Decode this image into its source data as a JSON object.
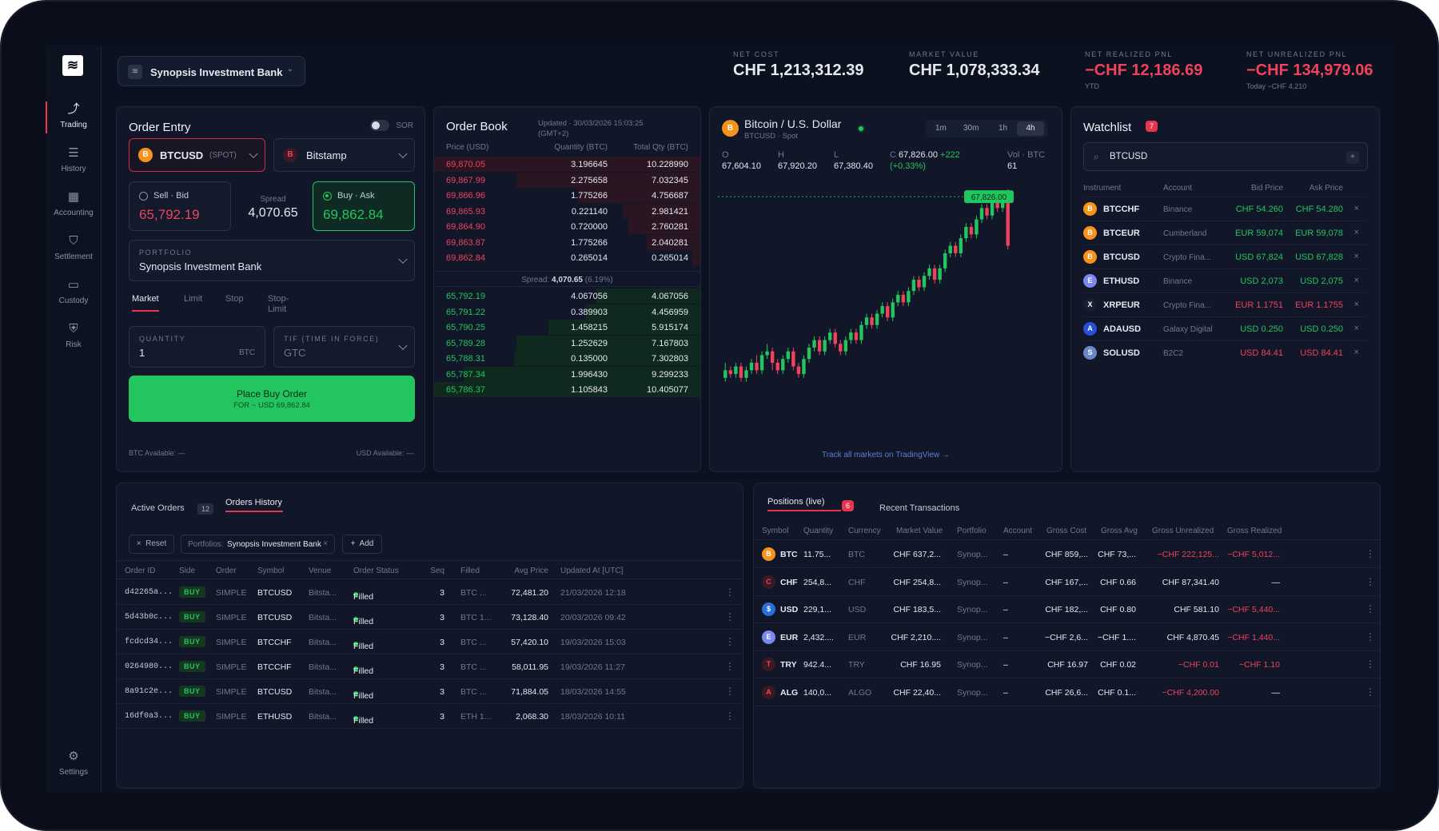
{
  "nav": {
    "items": [
      {
        "label": "Trading",
        "icon": "trend-icon"
      },
      {
        "label": "History",
        "icon": "list-icon"
      },
      {
        "label": "Accounting",
        "icon": "grid-icon"
      },
      {
        "label": "Settlement",
        "icon": "shield-icon"
      },
      {
        "label": "Custody",
        "icon": "wallet-icon"
      },
      {
        "label": "Risk",
        "icon": "shield-check-icon"
      }
    ],
    "settings": "Settings"
  },
  "header": {
    "entity": "Synopsis Investment Bank",
    "stats": [
      {
        "label": "NET COST",
        "value": "CHF 1,213,312.39",
        "sub": ""
      },
      {
        "label": "MARKET VALUE",
        "value": "CHF 1,078,333.34",
        "sub": ""
      },
      {
        "label": "NET REALIZED PNL",
        "value": "−CHF 12,186.69",
        "sub": "YTD"
      },
      {
        "label": "NET UNREALIZED PNL",
        "value": "−CHF 134,979.06",
        "sub": "Today −CHF 4,210"
      }
    ]
  },
  "order_entry": {
    "title": "Order Entry",
    "sor": "SOR",
    "symbol": "BTCUSD",
    "symbol_tag": "(SPOT)",
    "venue": "Bitstamp",
    "sell_label": "Sell · Bid",
    "sell_price": "65,792.19",
    "spread_label": "Spread",
    "spread": "4,070.65",
    "buy_label": "Buy · Ask",
    "buy_price": "69,862.84",
    "portfolio_label": "PORTFOLIO",
    "portfolio": "Synopsis Investment Bank",
    "tabs": [
      "Market",
      "Limit",
      "Stop",
      "Stop-Limit"
    ],
    "qty_label": "QUANTITY",
    "qty": "1",
    "qty_unit": "BTC",
    "tif_label": "TIF (TIME IN FORCE)",
    "tif": "GTC",
    "place_label": "Place Buy Order",
    "place_sub": "FOR ~ USD 69,862.84",
    "btc_avail": "BTC Available: —",
    "usd_avail": "USD Available: —"
  },
  "order_book": {
    "title": "Order Book",
    "updated": "Updated · 30/03/2026 15:03:25",
    "tz": "(GMT+2)",
    "cols": [
      "Price (USD)",
      "Quantity (BTC)",
      "Total Qty (BTC)"
    ],
    "asks": [
      [
        "69,870.05",
        "3.196645",
        "10.228990"
      ],
      [
        "69,867.99",
        "2.275658",
        "7.032345"
      ],
      [
        "69,866.96",
        "1.775266",
        "4.756687"
      ],
      [
        "69,865.93",
        "0.221140",
        "2.981421"
      ],
      [
        "69,864.90",
        "0.720000",
        "2.760281"
      ],
      [
        "69,863.87",
        "1.775266",
        "2.040281"
      ],
      [
        "69,862.84",
        "0.265014",
        "0.265014"
      ]
    ],
    "ask_depth": [
      1.0,
      0.69,
      0.46,
      0.29,
      0.27,
      0.2,
      0.03
    ],
    "spread_label": "Spread:",
    "spread": "4,070.65",
    "spread_pct": "(6.19%)",
    "bids": [
      [
        "65,792.19",
        "4.067056",
        "4.067056"
      ],
      [
        "65,791.22",
        "0.389903",
        "4.456959"
      ],
      [
        "65,790.25",
        "1.458215",
        "5.915174"
      ],
      [
        "65,789.28",
        "1.252629",
        "7.167803"
      ],
      [
        "65,788.31",
        "0.135000",
        "7.302803"
      ],
      [
        "65,787.34",
        "1.996430",
        "9.299233"
      ],
      [
        "65,786.37",
        "1.105843",
        "10.405077"
      ]
    ],
    "bid_depth": [
      0.39,
      0.43,
      0.57,
      0.69,
      0.7,
      0.89,
      1.0
    ]
  },
  "chart": {
    "title": "Bitcoin / U.S. Dollar",
    "sub": "BTCUSD · Spot",
    "icon": "B",
    "intervals": [
      "1m",
      "30m",
      "1h",
      "4h"
    ],
    "active_interval": "4h",
    "ohlc": [
      {
        "k": "O",
        "v": "67,604.10"
      },
      {
        "k": "H",
        "v": "67,920.20"
      },
      {
        "k": "L",
        "v": "67,380.40"
      },
      {
        "k": "C",
        "v": "67,826.00"
      }
    ],
    "change": "+222",
    "change_pct": "(+0.33%)",
    "vol_label": "Vol · BTC",
    "vol": "61",
    "last": "67,826.00",
    "footer": "Track all markets on TradingView →"
  },
  "chart_data": {
    "type": "candlestick",
    "last": 67826.0,
    "candles": [
      [
        51,
        53,
        55,
        50
      ],
      [
        53,
        52,
        54,
        51
      ],
      [
        52,
        54,
        55,
        51
      ],
      [
        54,
        51,
        55,
        50
      ],
      [
        51,
        53,
        54,
        50
      ],
      [
        53,
        55,
        56,
        52
      ],
      [
        55,
        53,
        57,
        52
      ],
      [
        53,
        57,
        58,
        52
      ],
      [
        57,
        58,
        60,
        56
      ],
      [
        58,
        55,
        59,
        53
      ],
      [
        55,
        53,
        56,
        52
      ],
      [
        53,
        56,
        57,
        52
      ],
      [
        56,
        58,
        59,
        55
      ],
      [
        58,
        54,
        59,
        53
      ],
      [
        54,
        52,
        55,
        51
      ],
      [
        52,
        56,
        57,
        51
      ],
      [
        56,
        59,
        60,
        55
      ],
      [
        59,
        61,
        62,
        58
      ],
      [
        61,
        58,
        62,
        57
      ],
      [
        58,
        61,
        62,
        57
      ],
      [
        61,
        63,
        64,
        60
      ],
      [
        63,
        60,
        64,
        59
      ],
      [
        60,
        58,
        61,
        57
      ],
      [
        58,
        61,
        62,
        57
      ],
      [
        61,
        63,
        64,
        60
      ],
      [
        63,
        61,
        64,
        60
      ],
      [
        61,
        65,
        66,
        60
      ],
      [
        65,
        67,
        68,
        64
      ],
      [
        67,
        65,
        68,
        64
      ],
      [
        65,
        68,
        69,
        64
      ],
      [
        68,
        70,
        71,
        67
      ],
      [
        70,
        67,
        71,
        66
      ],
      [
        67,
        71,
        72,
        66
      ],
      [
        71,
        73,
        74,
        70
      ],
      [
        73,
        71,
        74,
        70
      ],
      [
        71,
        74,
        75,
        70
      ],
      [
        74,
        77,
        78,
        73
      ],
      [
        77,
        75,
        78,
        74
      ],
      [
        75,
        78,
        79,
        74
      ],
      [
        78,
        80,
        81,
        77
      ],
      [
        80,
        77,
        81,
        76
      ],
      [
        77,
        80,
        81,
        76
      ],
      [
        80,
        84,
        85,
        79
      ],
      [
        84,
        86,
        87,
        83
      ],
      [
        86,
        84,
        87,
        83
      ],
      [
        84,
        88,
        89,
        83
      ],
      [
        88,
        91,
        92,
        87
      ],
      [
        91,
        89,
        92,
        88
      ],
      [
        89,
        93,
        94,
        88
      ],
      [
        93,
        96,
        97,
        92
      ],
      [
        96,
        94,
        97,
        93
      ],
      [
        94,
        98,
        99,
        93
      ],
      [
        98,
        96,
        99,
        95
      ],
      [
        96,
        99,
        100,
        95
      ],
      [
        99,
        86,
        101,
        85
      ]
    ]
  },
  "watchlist": {
    "title": "Watchlist",
    "count": "7",
    "search": "BTCUSD",
    "cols": [
      "Instrument",
      "Account",
      "Bid Price",
      "Ask Price"
    ],
    "rows": [
      {
        "icon": "B",
        "color": "#f7931a",
        "sym": "BTCCHF",
        "acct": "Binance",
        "bid": "CHF 54.260",
        "ask": "CHF 54.280",
        "c": "green"
      },
      {
        "icon": "B",
        "color": "#f7931a",
        "sym": "BTCEUR",
        "acct": "Cumberland",
        "bid": "EUR 59,074",
        "ask": "EUR 59,078",
        "c": "green"
      },
      {
        "icon": "B",
        "color": "#f7931a",
        "sym": "BTCUSD",
        "acct": "Crypto Fina...",
        "bid": "USD 67,824",
        "ask": "USD 67,828",
        "c": "green"
      },
      {
        "icon": "E",
        "color": "#7b88ef",
        "sym": "ETHUSD",
        "acct": "Binance",
        "bid": "USD 2,073",
        "ask": "USD 2,075",
        "c": "green"
      },
      {
        "icon": "X",
        "color": "#1a1f2e",
        "sym": "XRPEUR",
        "acct": "Crypto Fina...",
        "bid": "EUR 1.1751",
        "ask": "EUR 1.1755",
        "c": "red"
      },
      {
        "icon": "A",
        "color": "#2650d8",
        "sym": "ADAUSD",
        "acct": "Galaxy Digital",
        "bid": "USD 0.250",
        "ask": "USD 0.250",
        "c": "green"
      },
      {
        "icon": "S",
        "color": "#6a87c9",
        "sym": "SOLUSD",
        "acct": "B2C2",
        "bid": "USD 84.41",
        "ask": "USD 84.41",
        "c": "red"
      }
    ]
  },
  "orders": {
    "tabs": [
      {
        "label": "Active Orders",
        "count": "12"
      },
      {
        "label": "Orders History"
      }
    ],
    "reset": "Reset",
    "filter_label": "Portfolios:",
    "filter_value": "Synopsis Investment Bank",
    "add": "Add",
    "cols": [
      "Order ID",
      "Side",
      "Order",
      "Symbol",
      "Venue",
      "Order Status",
      "Seq",
      "Filled",
      "Avg Price",
      "Updated At [UTC]"
    ],
    "rows": [
      [
        "d42265a...",
        "BUY",
        "SIMPLE",
        "BTCUSD",
        "Bitsta...",
        "Filled",
        "3",
        "BTC ...",
        "72,481.20",
        "21/03/2026 12:18"
      ],
      [
        "5d43b0c...",
        "BUY",
        "SIMPLE",
        "BTCUSD",
        "Bitsta...",
        "Filled",
        "3",
        "BTC 1...",
        "73,128.40",
        "20/03/2026 09:42"
      ],
      [
        "fcdcd34...",
        "BUY",
        "SIMPLE",
        "BTCCHF",
        "Bitsta...",
        "Filled",
        "3",
        "BTC ...",
        "57,420.10",
        "19/03/2026 15:03"
      ],
      [
        "0264980...",
        "BUY",
        "SIMPLE",
        "BTCCHF",
        "Bitsta...",
        "Filled",
        "3",
        "BTC ...",
        "58,011.95",
        "19/03/2026 11:27"
      ],
      [
        "8a91c2e...",
        "BUY",
        "SIMPLE",
        "BTCUSD",
        "Bitsta...",
        "Filled",
        "3",
        "BTC ...",
        "71,884.05",
        "18/03/2026 14:55"
      ],
      [
        "16df0a3...",
        "BUY",
        "SIMPLE",
        "ETHUSD",
        "Bitsta...",
        "Filled",
        "3",
        "ETH 1...",
        "2,068.30",
        "18/03/2026 10:11"
      ]
    ]
  },
  "positions": {
    "tabs": [
      {
        "label": "Positions (live)",
        "count": "6"
      },
      {
        "label": "Recent Transactions"
      }
    ],
    "cols": [
      "Symbol",
      "Quantity",
      "Currency",
      "Market Value",
      "Portfolio",
      "Account",
      "Gross Cost",
      "Gross Avg",
      "Gross Unrealized",
      "Gross Realized"
    ],
    "rows": [
      {
        "icon": "B",
        "color": "#f7931a",
        "v": [
          "BTC",
          "11.75...",
          "BTC",
          "CHF 637,2...",
          "Synop...",
          "–",
          "CHF 859,...",
          "CHF 73,...",
          "−CHF 222,125...",
          "−CHF 5,012..."
        ],
        "uc": "red",
        "rc": "red"
      },
      {
        "icon": "C",
        "color": "#3a1a22",
        "v": [
          "CHF",
          "254,8...",
          "CHF",
          "CHF 254,8...",
          "Synop...",
          "–",
          "CHF 167,...",
          "CHF 0.66",
          "CHF 87,341.40",
          "—"
        ],
        "uc": "white",
        "rc": "white"
      },
      {
        "icon": "$",
        "color": "#2a6fd8",
        "v": [
          "USD",
          "229,1...",
          "USD",
          "CHF 183,5...",
          "Synop...",
          "–",
          "CHF 182,...",
          "CHF 0.80",
          "CHF 581.10",
          "−CHF 5,440..."
        ],
        "uc": "white",
        "rc": "red"
      },
      {
        "icon": "E",
        "color": "#7b88ef",
        "v": [
          "EUR",
          "2,432....",
          "EUR",
          "CHF 2,210....",
          "Synop...",
          "–",
          "−CHF 2,6...",
          "−CHF 1....",
          "CHF 4,870.45",
          "−CHF 1,440..."
        ],
        "uc": "white",
        "rc": "red"
      },
      {
        "icon": "T",
        "color": "#3a1a22",
        "v": [
          "TRY",
          "942.4...",
          "TRY",
          "CHF 16.95",
          "Synop...",
          "–",
          "CHF 16.97",
          "CHF 0.02",
          "−CHF 0.01",
          "−CHF 1.10"
        ],
        "uc": "red",
        "rc": "red"
      },
      {
        "icon": "A",
        "color": "#3a1a22",
        "v": [
          "ALG",
          "140,0...",
          "ALGO",
          "CHF 22,40...",
          "Synop...",
          "–",
          "CHF 26,6...",
          "CHF 0.1...",
          "−CHF 4,200.00",
          "—"
        ],
        "uc": "red",
        "rc": "white"
      }
    ]
  }
}
